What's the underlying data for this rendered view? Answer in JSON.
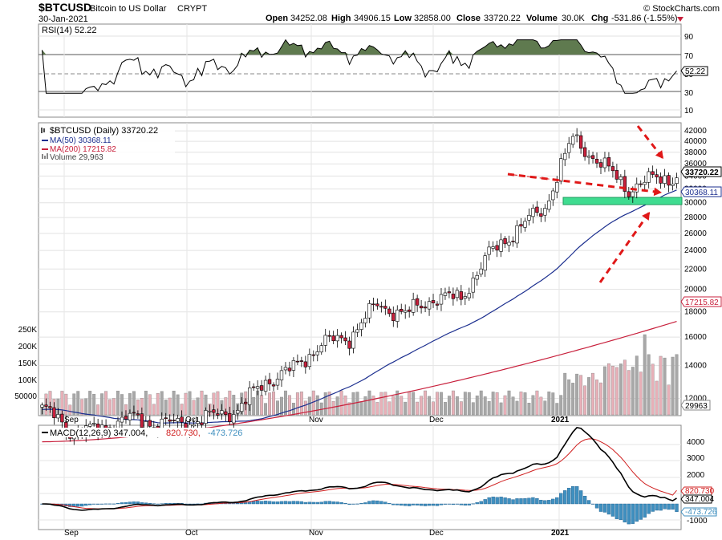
{
  "header": {
    "symbol": "$BTCUSD",
    "name": "Bitcoin to US Dollar",
    "exchange": "CRYPT",
    "date": "30-Jan-2021",
    "open_label": "Open",
    "open": "34252.08",
    "high_label": "High",
    "high": "34906.15",
    "low_label": "Low",
    "low": "32858.00",
    "close_label": "Close",
    "close": "33720.22",
    "volume_label": "Volume",
    "volume": "30.0K",
    "chg_label": "Chg",
    "chg": "-531.86 (-1.55%)",
    "watermark": "© StockCharts.com"
  },
  "colors": {
    "up": "#ffffff",
    "down": "#c8203c",
    "ma50": "#1c2f8f",
    "ma200": "#c8203c",
    "rsi_fill": "#5f7a4f",
    "macd": "#000000",
    "signal": "#d02020",
    "hist": "#3f8fbf",
    "support_band": "#3fdc90",
    "arrow": "#e01818",
    "vol_up": "#a8a8a8",
    "vol_down": "#e8b0b8"
  },
  "rsi": {
    "legend": "RSI(14) 52.22",
    "last_label": "52.22",
    "ticks": [
      "90",
      "70",
      "50",
      "30",
      "10"
    ]
  },
  "price": {
    "legend_main": "$BTCUSD (Daily) 33720.22",
    "legend_ma50": "MA(50) 30368.11",
    "legend_ma200": "MA(200) 17215.82",
    "legend_volume": "Volume 29,963",
    "close_label": "33720.22",
    "ma50_label": "30368.11",
    "ma200_label": "17215.82",
    "volume_label": "29963",
    "ticks": [
      "42000",
      "40000",
      "38000",
      "36000",
      "34000",
      "32000",
      "30000",
      "28000",
      "26000",
      "24000",
      "22000",
      "20000",
      "18000",
      "16000",
      "14000",
      "12000"
    ],
    "volume_ticks": [
      "250K",
      "200K",
      "150K",
      "100K",
      "50000"
    ]
  },
  "macd": {
    "legend_prefix": "MACD(12,26,9) 347.004,",
    "legend_signal": "820.730,",
    "legend_hist": "-473.726",
    "labels": [
      "820.730",
      "347.004",
      "-473.726"
    ],
    "ticks": [
      "4000",
      "3000",
      "2000",
      "1000",
      "-1000"
    ]
  },
  "x_axis": {
    "labels": [
      "Sep",
      "Oct",
      "Nov",
      "Dec",
      "2021"
    ]
  },
  "chart_data": {
    "type": "candlestick",
    "title": "$BTCUSD Bitcoin to US Dollar CRYPT",
    "price_axis": {
      "scale": "log",
      "range": [
        11500,
        42500
      ]
    },
    "weekly_closes": [
      {
        "week": "Aug 24",
        "close": 11500
      },
      {
        "week": "Aug 31",
        "close": 10300
      },
      {
        "week": "Sep 7",
        "close": 10350
      },
      {
        "week": "Sep 14",
        "close": 10950
      },
      {
        "week": "Sep 21",
        "close": 10700
      },
      {
        "week": "Sep 28",
        "close": 10650
      },
      {
        "week": "Oct 5",
        "close": 11000
      },
      {
        "week": "Oct 12",
        "close": 11400
      },
      {
        "week": "Oct 19",
        "close": 13000
      },
      {
        "week": "Oct 26",
        "close": 13800
      },
      {
        "week": "Nov 2",
        "close": 15500
      },
      {
        "week": "Nov 9",
        "close": 16000
      },
      {
        "week": "Nov 16",
        "close": 18600
      },
      {
        "week": "Nov 23",
        "close": 17800
      },
      {
        "week": "Nov 30",
        "close": 19200
      },
      {
        "week": "Dec 7",
        "close": 19200
      },
      {
        "week": "Dec 14",
        "close": 23500
      },
      {
        "week": "Dec 21",
        "close": 26500
      },
      {
        "week": "Dec 28",
        "close": 29300
      },
      {
        "week": "Jan 4",
        "close": 40500
      },
      {
        "week": "Jan 11",
        "close": 36000
      },
      {
        "week": "Jan 18",
        "close": 32000
      },
      {
        "week": "Jan 25",
        "close": 33720
      }
    ],
    "last": {
      "open": 34252.08,
      "high": 34906.15,
      "low": 32858.0,
      "close": 33720.22,
      "volume": 29963
    },
    "ma50_last": 30368.11,
    "ma200_last": 17215.82,
    "rsi_last": 52.22,
    "macd_last": {
      "macd": 347.004,
      "signal": 820.73,
      "histogram": -473.726
    }
  }
}
